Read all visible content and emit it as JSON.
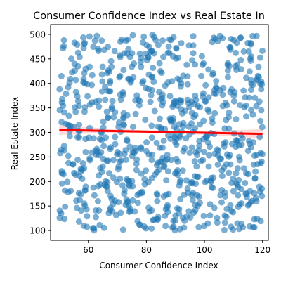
{
  "chart_data": {
    "type": "scatter",
    "title": "Consumer Confidence Index vs Real Estate In",
    "xlabel": "Consumer Confidence Index",
    "ylabel": "Real Estate Index",
    "xlim": [
      47,
      122
    ],
    "ylim": [
      80,
      520
    ],
    "xticks": [
      60,
      80,
      100,
      120
    ],
    "yticks": [
      100,
      150,
      200,
      250,
      300,
      350,
      400,
      450,
      500
    ],
    "grid": false,
    "legend": "none",
    "point_color": "#1f77b4",
    "point_alpha": 0.6,
    "regression": {
      "x": [
        50,
        120
      ],
      "y": [
        305,
        297
      ],
      "color": "#ff0000",
      "ci_color": "#ff0000",
      "ci_alpha": 0.15,
      "ci_half_width_at_ends": 10,
      "ci_half_width_center": 3
    },
    "points": {
      "count": 800,
      "x_range": [
        50,
        120
      ],
      "y_range": [
        100,
        500
      ],
      "distribution": "uniform random, no visible correlation"
    }
  },
  "figure_title": "Consumer Confidence Index vs Real Estate In"
}
